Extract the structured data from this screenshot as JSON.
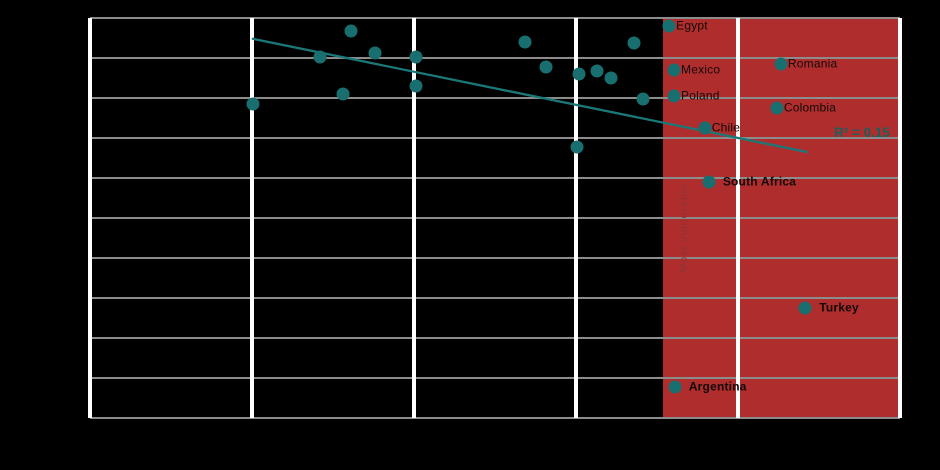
{
  "colors": {
    "background": "#000000",
    "dot_teal": "#196f70",
    "trendline_teal": "#1c7878",
    "highlight_red": "#b02d2d",
    "gridline_gray": "#8c8c8c",
    "major_vline_white": "#ffffff",
    "label_black": "#120808",
    "r2_text_teal": "#1b5f5e"
  },
  "chart_data": {
    "type": "scatter",
    "title": "",
    "xlabel": "",
    "ylabel": "",
    "axis_tick_labels_visible": false,
    "x_gridline_positions_pct": [
      0,
      20,
      40,
      60,
      80,
      100
    ],
    "y_gridline_positions_pct": [
      0,
      10,
      20,
      30,
      40,
      50,
      60,
      70,
      80,
      90,
      100
    ],
    "points": [
      {
        "x": 20.1,
        "y": 78.5,
        "label": "",
        "emphasis": false
      },
      {
        "x": 28.4,
        "y": 90.3,
        "label": "",
        "emphasis": false
      },
      {
        "x": 31.2,
        "y": 81.0,
        "label": "",
        "emphasis": false
      },
      {
        "x": 32.2,
        "y": 96.8,
        "label": "",
        "emphasis": false
      },
      {
        "x": 35.2,
        "y": 91.3,
        "label": "",
        "emphasis": false
      },
      {
        "x": 40.2,
        "y": 90.3,
        "label": "",
        "emphasis": false
      },
      {
        "x": 40.2,
        "y": 83.0,
        "label": "",
        "emphasis": false
      },
      {
        "x": 53.7,
        "y": 94.0,
        "label": "",
        "emphasis": false
      },
      {
        "x": 56.3,
        "y": 87.8,
        "label": "",
        "emphasis": false
      },
      {
        "x": 60.1,
        "y": 67.8,
        "label": "",
        "emphasis": false
      },
      {
        "x": 60.4,
        "y": 86.0,
        "label": "",
        "emphasis": false
      },
      {
        "x": 62.6,
        "y": 86.8,
        "label": "",
        "emphasis": false
      },
      {
        "x": 64.3,
        "y": 85.0,
        "label": "",
        "emphasis": false
      },
      {
        "x": 67.2,
        "y": 93.8,
        "label": "",
        "emphasis": false
      },
      {
        "x": 68.3,
        "y": 79.8,
        "label": "",
        "emphasis": false
      },
      {
        "x": 71.5,
        "y": 98.0,
        "label": "Egypt",
        "emphasis": false
      },
      {
        "x": 72.1,
        "y": 87.0,
        "label": "Mexico",
        "emphasis": false
      },
      {
        "x": 72.1,
        "y": 80.5,
        "label": "Poland",
        "emphasis": false
      },
      {
        "x": 75.9,
        "y": 72.5,
        "label": "Chile",
        "emphasis": false
      },
      {
        "x": 85.3,
        "y": 88.5,
        "label": "Romania",
        "emphasis": false
      },
      {
        "x": 84.8,
        "y": 77.5,
        "label": "Colombia",
        "emphasis": false
      },
      {
        "x": 76.4,
        "y": 59.0,
        "label": "South Africa",
        "emphasis": true
      },
      {
        "x": 88.3,
        "y": 27.5,
        "label": "Turkey",
        "emphasis": true
      },
      {
        "x": 72.2,
        "y": 7.8,
        "label": "Argentina",
        "emphasis": true
      }
    ],
    "trendline": {
      "x1": 20.1,
      "y1": 94.8,
      "x2": 88.5,
      "y2": 66.5,
      "r2_label": "R² = 0.15"
    },
    "highlight_region": {
      "label": "Most vulnerable",
      "x_start_pct": 70.7,
      "x_end_pct": 100
    }
  }
}
